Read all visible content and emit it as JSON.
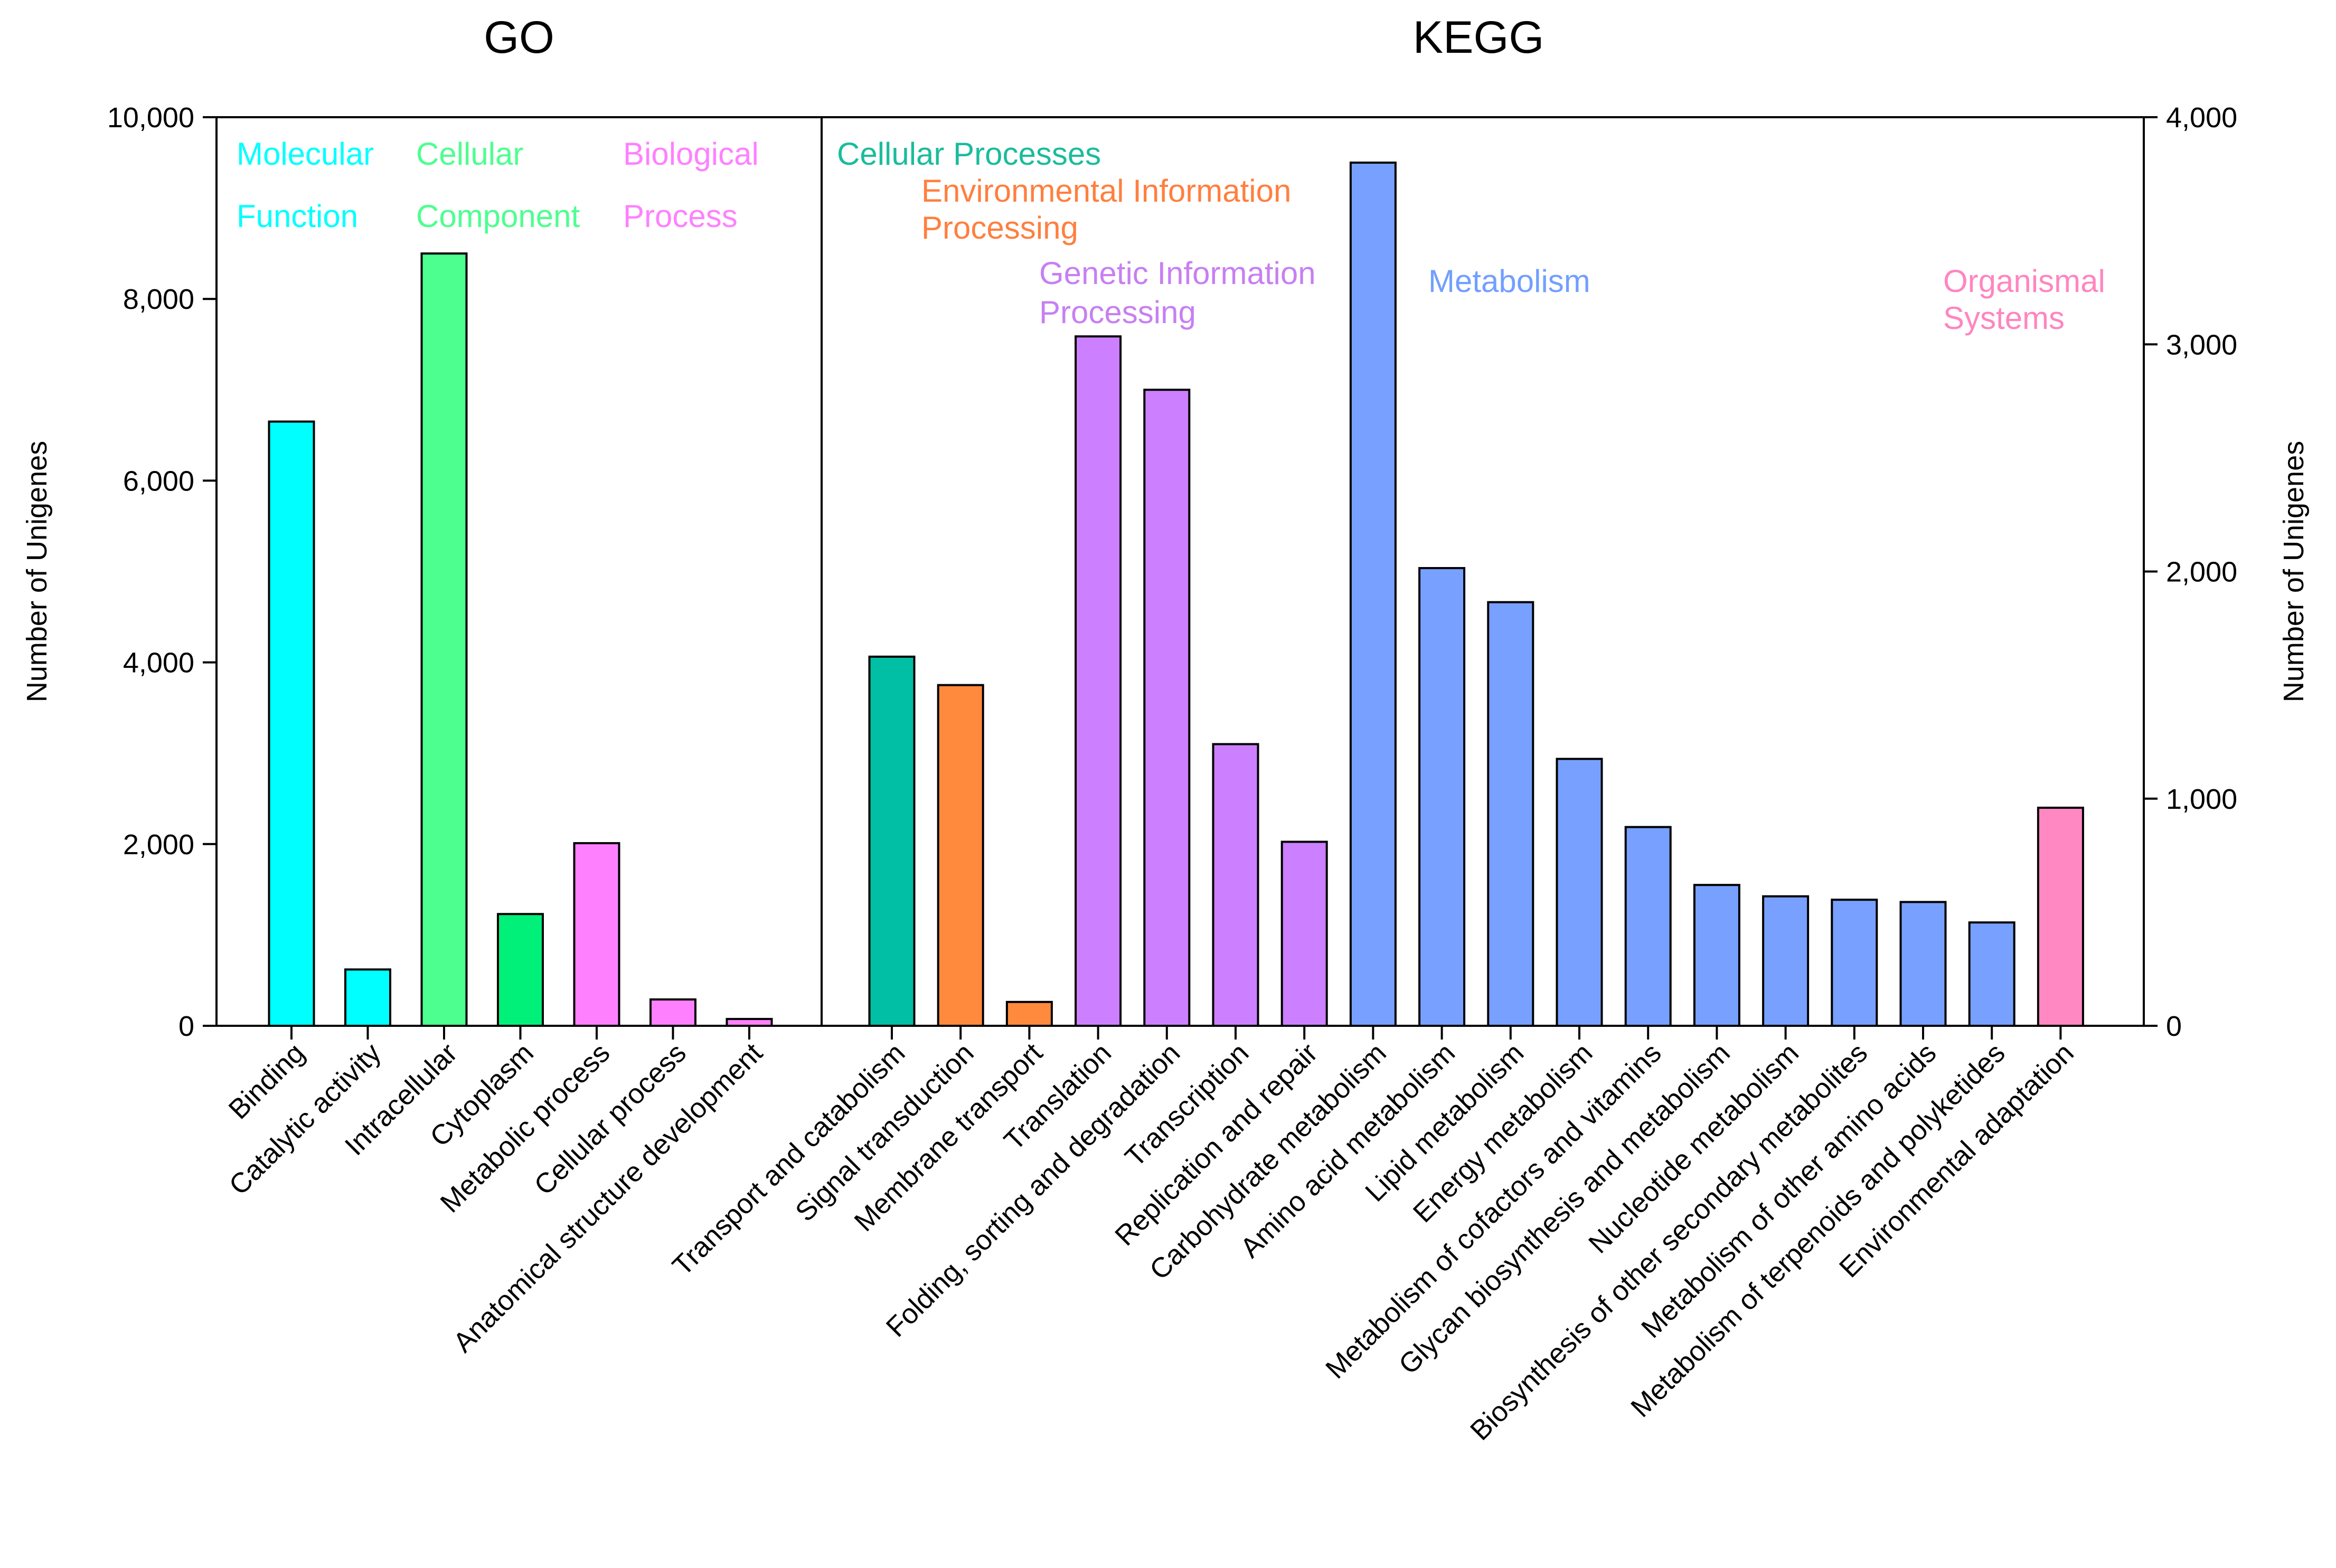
{
  "chart_data": {
    "type": "bar",
    "panels": [
      {
        "title": "GO",
        "ylabel": "Number of Unigenes",
        "ylim": [
          0,
          10000
        ],
        "yticks": [
          "0",
          "2,000",
          "4,000",
          "6,000",
          "8,000",
          "10,000"
        ],
        "yticks_values": [
          0,
          2000,
          4000,
          6000,
          8000,
          10000
        ],
        "groups": [
          {
            "lines": [
              "Molecular",
              "Function"
            ],
            "color": "#00FFFF"
          },
          {
            "lines": [
              "Cellular",
              "Component"
            ],
            "color": "#4DFF8F"
          },
          {
            "lines": [
              "Biological",
              "Process"
            ],
            "color": "#FF80FF"
          }
        ],
        "bars": [
          {
            "category": "Binding",
            "value": 6650,
            "group": 0
          },
          {
            "category": "Catalytic activity",
            "value": 620,
            "group": 0
          },
          {
            "category": "Intracellular",
            "value": 8500,
            "group": 1
          },
          {
            "category": "Cytoplasm",
            "value": 1230,
            "group": 1
          },
          {
            "category": "Metabolic process",
            "value": 2010,
            "group": 2
          },
          {
            "category": "Cellular process",
            "value": 290,
            "group": 2
          },
          {
            "category": "Anatomical structure development",
            "value": 75,
            "group": 2
          }
        ],
        "bar_colors": [
          "#00FFFF",
          "#00FFFF",
          "#4DFF8F",
          "#00F07A",
          "#FF80FF",
          "#FF80FF",
          "#FF80FF"
        ]
      },
      {
        "title": "KEGG",
        "ylabel": "Number of Unigenes",
        "ylim": [
          0,
          4000
        ],
        "yticks": [
          "0",
          "1,000",
          "2,000",
          "3,000",
          "4,000"
        ],
        "yticks_values": [
          0,
          1000,
          2000,
          3000,
          4000
        ],
        "groups": [
          {
            "lines": [
              "Cellular Processes"
            ],
            "color": "#1ABC9C"
          },
          {
            "lines": [
              "Environmental Information",
              "Processing"
            ],
            "color": "#FF7F3F"
          },
          {
            "lines": [
              "Genetic Information",
              "Processing"
            ],
            "color": "#C77FF2"
          },
          {
            "lines": [
              "Metabolism"
            ],
            "color": "#729FFF"
          },
          {
            "lines": [
              "Organismal",
              "Systems"
            ],
            "color": "#FF85C0"
          }
        ],
        "bars": [
          {
            "category": "Transport and catabolism",
            "value": 1625,
            "group": 0
          },
          {
            "category": "Signal transduction",
            "value": 1500,
            "group": 1
          },
          {
            "category": "Membrane transport",
            "value": 105,
            "group": 1
          },
          {
            "category": "Translation",
            "value": 3035,
            "group": 2
          },
          {
            "category": "Folding, sorting and degradation",
            "value": 2800,
            "group": 2
          },
          {
            "category": "Transcription",
            "value": 1240,
            "group": 2
          },
          {
            "category": "Replication and repair",
            "value": 810,
            "group": 2
          },
          {
            "category": "Carbohydrate metabolism",
            "value": 3800,
            "group": 3
          },
          {
            "category": "Amino acid metabolism",
            "value": 2015,
            "group": 3
          },
          {
            "category": "Lipid metabolism",
            "value": 1865,
            "group": 3
          },
          {
            "category": "Energy metabolism",
            "value": 1175,
            "group": 3
          },
          {
            "category": "Metabolism of cofactors and vitamins",
            "value": 875,
            "group": 3
          },
          {
            "category": "Glycan biosynthesis and metabolism",
            "value": 620,
            "group": 3
          },
          {
            "category": "Nucleotide metabolism",
            "value": 570,
            "group": 3
          },
          {
            "category": "Biosynthesis of other secondary metabolites",
            "value": 555,
            "group": 3
          },
          {
            "category": "Metabolism of other amino acids",
            "value": 545,
            "group": 3
          },
          {
            "category": "Metabolism of terpenoids and polyketides",
            "value": 455,
            "group": 3
          },
          {
            "category": "Environmental adaptation",
            "value": 960,
            "group": 4
          }
        ],
        "bar_colors": [
          "#00BFA5",
          "#FF8A3D",
          "#FF8A3D",
          "#CC80FF",
          "#CC80FF",
          "#CC80FF",
          "#CC80FF",
          "#78A0FF",
          "#78A0FF",
          "#78A0FF",
          "#78A0FF",
          "#78A0FF",
          "#78A0FF",
          "#78A0FF",
          "#78A0FF",
          "#78A0FF",
          "#78A0FF",
          "#FF88C2"
        ]
      }
    ]
  }
}
